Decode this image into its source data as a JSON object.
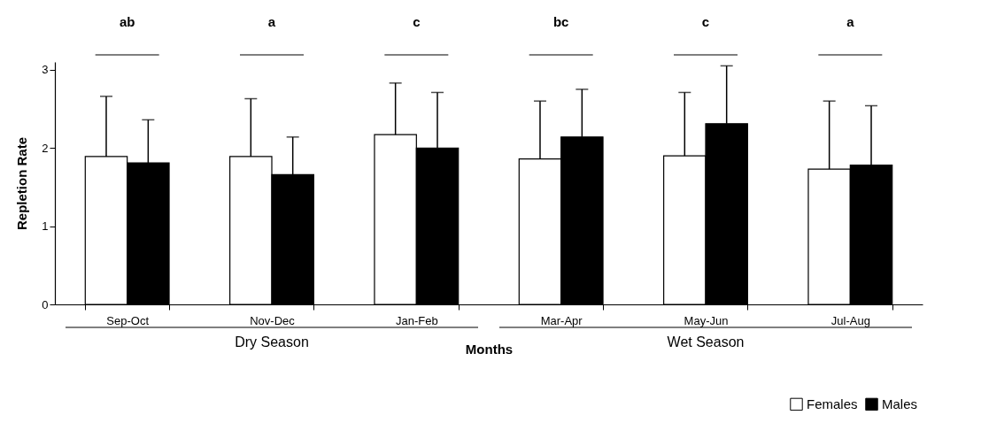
{
  "chart_data": {
    "type": "bar",
    "xlabel": "Months",
    "ylabel": "Repletion Rate",
    "categories": [
      "Sep-Oct",
      "Nov-Dec",
      "Jan-Feb",
      "Mar-Apr",
      "May-Jun",
      "Jul-Aug"
    ],
    "series": [
      {
        "name": "Females",
        "color": "#ffffff",
        "values": [
          1.89,
          1.89,
          2.17,
          1.86,
          1.9,
          1.73
        ],
        "errors": [
          [
            1.89,
            2.66
          ],
          [
            1.89,
            2.63
          ],
          [
            2.17,
            2.83
          ],
          [
            1.86,
            2.6
          ],
          [
            1.9,
            2.71
          ],
          [
            1.73,
            2.6
          ]
        ]
      },
      {
        "name": "Males",
        "color": "#000000",
        "values": [
          1.81,
          1.66,
          2.0,
          2.14,
          2.31,
          1.78
        ],
        "errors": [
          [
            1.81,
            2.36
          ],
          [
            1.66,
            2.14
          ],
          [
            2.0,
            2.71
          ],
          [
            2.14,
            2.75
          ],
          [
            2.31,
            3.05
          ],
          [
            1.78,
            2.54
          ]
        ]
      }
    ],
    "ylim": [
      0,
      3.1
    ],
    "yticks": [
      0,
      1,
      2,
      3
    ],
    "grid": false,
    "legend": "bottom right",
    "annotations": [
      "ab",
      "a",
      "c",
      "bc",
      "c",
      "a",
      "Dry Season",
      "Wet Season"
    ]
  }
}
